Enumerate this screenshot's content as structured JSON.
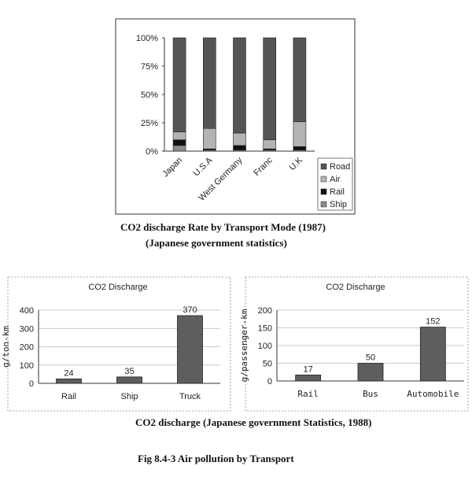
{
  "chart_data": [
    {
      "type": "bar",
      "stacked": true,
      "categories": [
        "Japan",
        "U.S.A",
        "West Germany",
        "Franc",
        "U.K"
      ],
      "series": [
        {
          "name": "Ship",
          "values": [
            5,
            1,
            1,
            1,
            1
          ],
          "color": "#8a8a8a"
        },
        {
          "name": "Rail",
          "values": [
            5,
            1,
            4,
            1,
            3
          ],
          "color": "#111111"
        },
        {
          "name": "Air",
          "values": [
            7,
            18,
            11,
            8,
            22
          ],
          "color": "#b3b3b3"
        },
        {
          "name": "Road",
          "values": [
            83,
            80,
            84,
            90,
            74
          ],
          "color": "#555555"
        }
      ],
      "y_ticks": [
        "0%",
        "25%",
        "50%",
        "75%",
        "100%"
      ],
      "ylim": [
        0,
        100
      ],
      "legend": "right",
      "title": "CO2 discharge Rate by Transport Mode (1987)",
      "subtitle": "(Japanese government statistics)"
    },
    {
      "type": "bar",
      "title": "CO2 Discharge",
      "categories": [
        "Rail",
        "Ship",
        "Truck"
      ],
      "values": [
        24,
        35,
        370
      ],
      "data_labels": [
        "24",
        "35",
        "370"
      ],
      "ylabel": "g/ton-km",
      "y_ticks": [
        "0",
        "100",
        "200",
        "300",
        "400"
      ],
      "ylim": [
        0,
        400
      ],
      "grid": true
    },
    {
      "type": "bar",
      "title": "CO2 Discharge",
      "categories": [
        "Rail",
        "Bus",
        "Automobile"
      ],
      "values": [
        17,
        50,
        152
      ],
      "data_labels": [
        "17",
        "50",
        "152"
      ],
      "ylabel": "g/passenger-km",
      "y_ticks": [
        "0",
        "50",
        "100",
        "150",
        "200"
      ],
      "ylim": [
        0,
        200
      ],
      "grid": true
    }
  ],
  "captions": {
    "bottom_charts": "CO2 discharge (Japanese government Statistics, 1988)",
    "figure": "Fig 8.4-3 Air pollution by Transport"
  }
}
